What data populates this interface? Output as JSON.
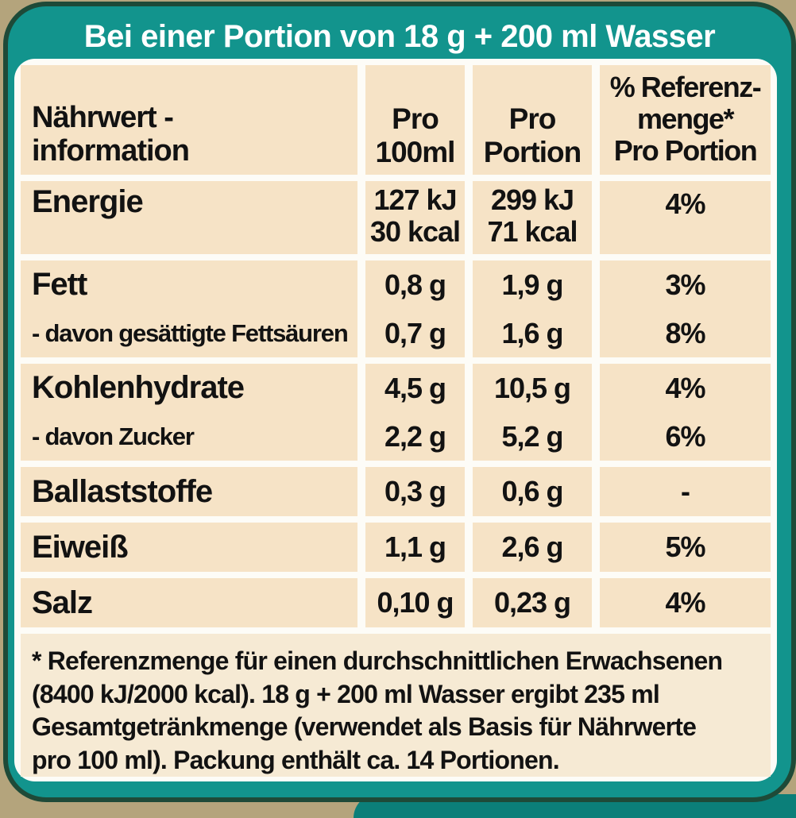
{
  "header": {
    "title": "Bei einer Portion von 18 g + 200 ml Wasser"
  },
  "table": {
    "columns": {
      "name": "Nährwert -\ninformation",
      "per100": "Pro\n100ml",
      "portion": "Pro\nPortion",
      "reference": "% Referenz-\nmenge*\nPro Portion"
    },
    "rows": {
      "energie": {
        "label": "Energie",
        "per100": "127 kJ\n30 kcal",
        "portion": "299 kJ\n71 kcal",
        "reference": "4%"
      },
      "fett": {
        "label": "Fett",
        "per100": "0,8 g",
        "portion": "1,9 g",
        "reference": "3%"
      },
      "fett_sub": {
        "label": "- davon gesättigte Fettsäuren",
        "per100": "0,7 g",
        "portion": "1,6 g",
        "reference": "8%"
      },
      "kohlenhydrate": {
        "label": "Kohlenhydrate",
        "per100": "4,5 g",
        "portion": "10,5 g",
        "reference": "4%"
      },
      "zucker": {
        "label": "- davon Zucker",
        "per100": "2,2 g",
        "portion": "5,2 g",
        "reference": "6%"
      },
      "ballaststoffe": {
        "label": "Ballaststoffe",
        "per100": "0,3 g",
        "portion": "0,6 g",
        "reference": "-"
      },
      "eiweiss": {
        "label": "Eiweiß",
        "per100": "1,1 g",
        "portion": "2,6 g",
        "reference": "5%"
      },
      "salz": {
        "label": "Salz",
        "per100": "0,10 g",
        "portion": "0,23 g",
        "reference": "4%"
      }
    }
  },
  "footnote": {
    "text": "* Referenzmenge für einen durchschnittlichen Erwachsenen\n(8400 kJ/2000 kcal). 18 g + 200 ml Wasser ergibt 235 ml\nGesamtgetränkmenge (verwendet als Basis für Nährwerte\npro 100 ml). Packung enthält ca. 14 Portionen."
  },
  "colors": {
    "teal": "#12948d",
    "dark_green_border": "#1e4a38",
    "tan_background": "#b4a47c",
    "cream_cell": "#f6e3c6",
    "footnote_cream": "#f6ead4",
    "dark_teal_notch": "#0b7f79",
    "header_text": "#ffffff",
    "body_text": "#121212"
  }
}
